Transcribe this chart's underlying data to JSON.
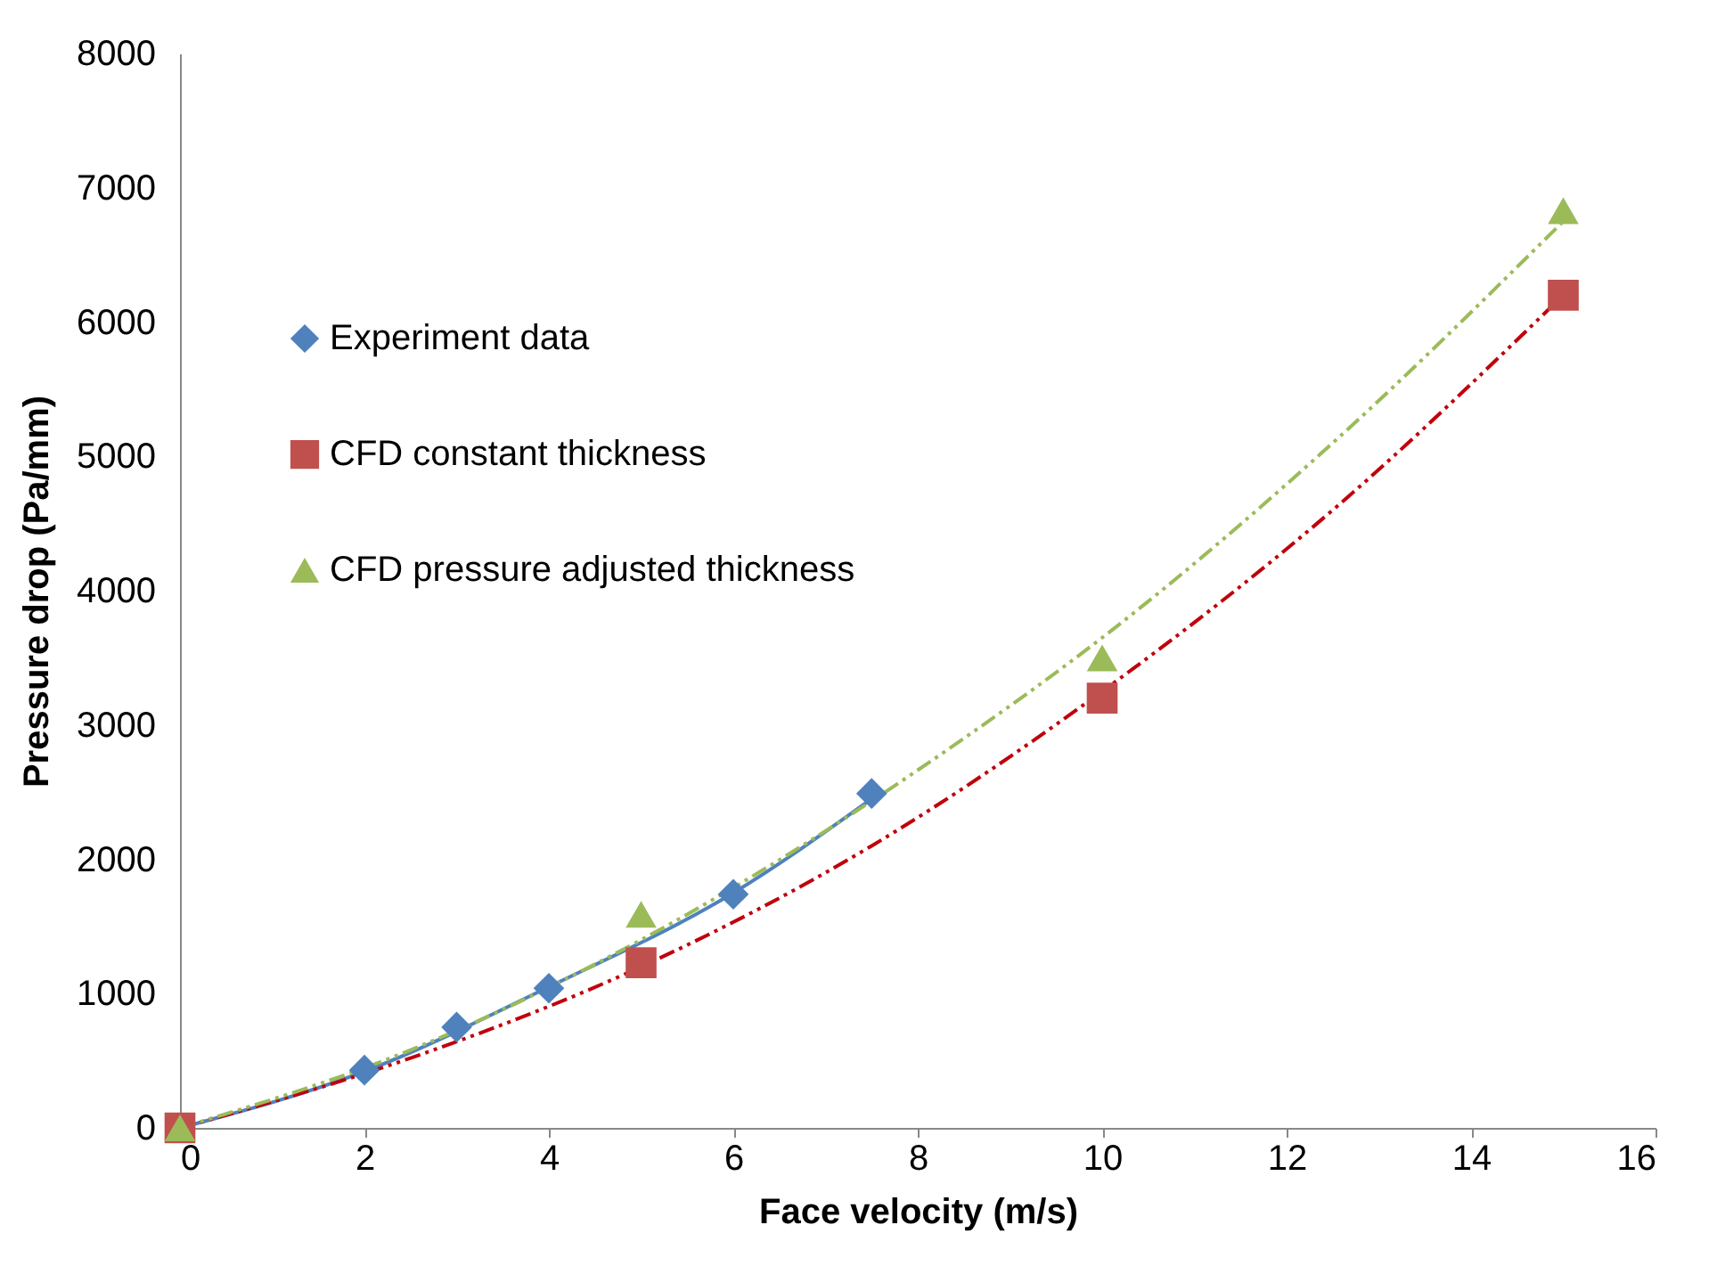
{
  "chart_data": {
    "type": "scatter",
    "xlabel": "Face velocity (m/s)",
    "ylabel": "Pressure drop (Pa/mm)",
    "xlim": [
      0,
      16
    ],
    "xticks": [
      0,
      2,
      4,
      6,
      8,
      10,
      12,
      14,
      16
    ],
    "ylim": [
      0,
      8000
    ],
    "yticks": [
      0,
      1000,
      2000,
      3000,
      4000,
      5000,
      6000,
      7000,
      8000
    ],
    "grid": false,
    "legend": "top left",
    "series": [
      {
        "name": "Experiment data",
        "color": "#4f81bd",
        "marker": "diamond",
        "x": [
          2,
          3,
          4,
          6,
          7.5
        ],
        "values": [
          430,
          750,
          1040,
          1740,
          2490
        ]
      },
      {
        "name": "CFD constant thickness",
        "color": "#c0504d",
        "marker": "square",
        "x": [
          0,
          5,
          10,
          15
        ],
        "values": [
          0,
          1230,
          3200,
          6200
        ]
      },
      {
        "name": "CFD pressure adjusted thickness",
        "color": "#9bbb59",
        "marker": "triangle",
        "x": [
          0,
          5,
          10,
          15
        ],
        "values": [
          0,
          1590,
          3500,
          6830
        ]
      },
      {
        "type": "line",
        "color": "#4f81bd",
        "line_style": "solid",
        "x": [
          0,
          2,
          4,
          6,
          7.5
        ],
        "values": [
          0,
          420,
          1050,
          1750,
          2450
        ]
      },
      {
        "type": "line",
        "color": "#c0000b",
        "line_style": "dashdotdot",
        "x": [
          0,
          2.5,
          5,
          7.5,
          10,
          12.5,
          15
        ],
        "values": [
          0,
          520,
          1200,
          2100,
          3250,
          4600,
          6200
        ]
      },
      {
        "type": "line",
        "color": "#9bbb59",
        "line_style": "dashdotdot",
        "x": [
          0,
          2.5,
          5,
          8.5,
          10,
          12.5,
          15
        ],
        "values": [
          0,
          580,
          1400,
          2900,
          3650,
          5100,
          6750
        ]
      }
    ]
  }
}
